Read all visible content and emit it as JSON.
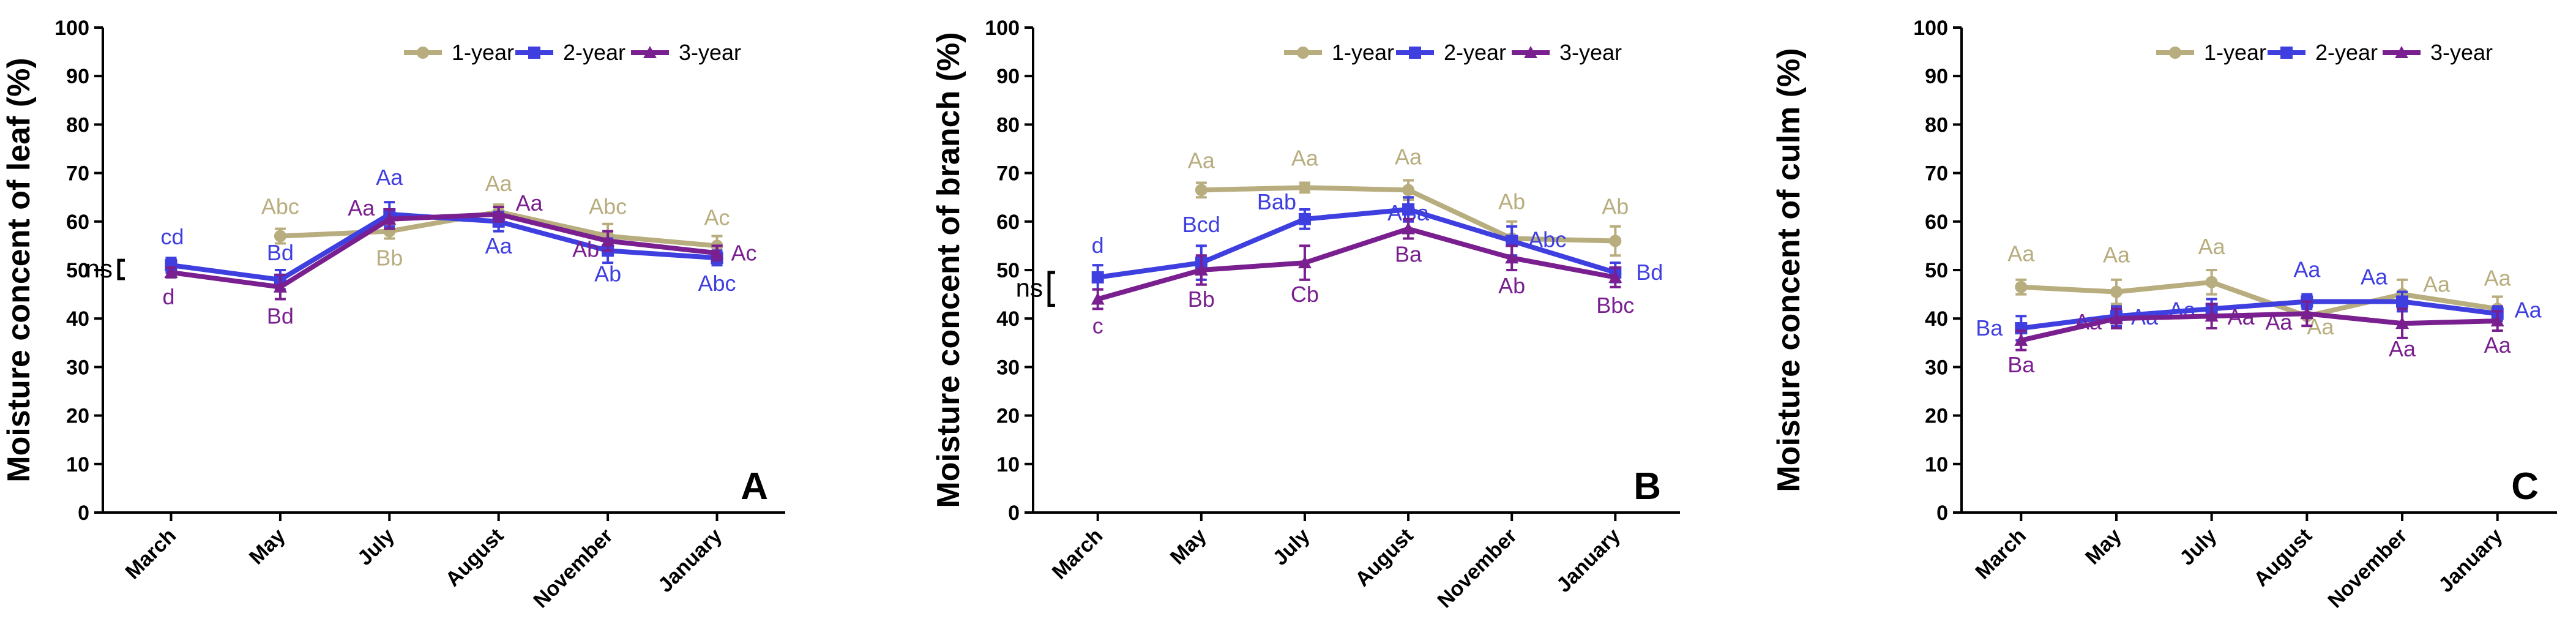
{
  "chart_data": [
    {
      "type": "line",
      "panel": "A",
      "ylabel": "Moisture concent of leaf (%)",
      "categories": [
        "March",
        "May",
        "July",
        "August",
        "November",
        "January"
      ],
      "ylim": [
        0,
        100
      ],
      "yticks": [
        "0",
        "10",
        "20",
        "30",
        "40",
        "50",
        "60",
        "70",
        "80",
        "90",
        "100"
      ],
      "series": [
        {
          "name": "1-year",
          "color": "#b8ad7e",
          "values": [
            null,
            57,
            58,
            62,
            57,
            55
          ],
          "errors": [
            0,
            1.5,
            1.5,
            1.5,
            2.5,
            2
          ],
          "labels": [
            null,
            "Abc",
            "Bb",
            "Aa",
            "Abc",
            "Ac"
          ]
        },
        {
          "name": "2-year",
          "color": "#3f3fe0",
          "values": [
            51,
            48,
            61.5,
            60,
            54,
            52.5
          ],
          "errors": [
            1.5,
            2,
            2.5,
            2,
            2.5,
            1.5
          ],
          "labels": [
            "cd",
            "Bd",
            "Aa",
            "Aa",
            "Ab",
            "Abc"
          ]
        },
        {
          "name": "3-year",
          "color": "#7a1f8f",
          "values": [
            49.5,
            46.5,
            60.5,
            61.5,
            56,
            53.5
          ],
          "errors": [
            1,
            2.5,
            2,
            1.5,
            2,
            1.5
          ],
          "labels": [
            "d",
            "Bd",
            "Aa",
            "Aa",
            "Ab",
            "Ac"
          ]
        }
      ],
      "annotations": [
        "ns"
      ],
      "legend": [
        "1-year",
        "2-year",
        "3-year"
      ]
    },
    {
      "type": "line",
      "panel": "B",
      "ylabel": "Moisture concent of branch (%)",
      "categories": [
        "March",
        "May",
        "July",
        "August",
        "November",
        "January"
      ],
      "ylim": [
        0,
        100
      ],
      "yticks": [
        "0",
        "10",
        "20",
        "30",
        "40",
        "50",
        "60",
        "70",
        "80",
        "90",
        "100"
      ],
      "series": [
        {
          "name": "1-year",
          "color": "#b8ad7e",
          "values": [
            null,
            66.5,
            67,
            66.5,
            56.5,
            56
          ],
          "errors": [
            0,
            1.5,
            1,
            2,
            3.5,
            3
          ],
          "labels": [
            null,
            "Aa",
            "Aa",
            "Aa",
            "Ab",
            "Ab"
          ]
        },
        {
          "name": "2-year",
          "color": "#3f3fe0",
          "values": [
            48.5,
            51.5,
            60.5,
            62.5,
            56,
            49.5
          ],
          "errors": [
            2.5,
            3.5,
            2,
            2.5,
            3,
            2
          ],
          "labels": [
            "d",
            "Bcd",
            "Bab",
            "ABa",
            "Abc",
            "Bd"
          ]
        },
        {
          "name": "3-year",
          "color": "#7a1f8f",
          "values": [
            44,
            50,
            51.5,
            58.5,
            52.5,
            48.5
          ],
          "errors": [
            2,
            3,
            3.5,
            2,
            2.5,
            2
          ],
          "labels": [
            "c",
            "Bb",
            "Cb",
            "Ba",
            "Ab",
            "Bbc"
          ]
        }
      ],
      "annotations": [
        "ns"
      ],
      "legend": [
        "1-year",
        "2-year",
        "3-year"
      ]
    },
    {
      "type": "line",
      "panel": "C",
      "ylabel": "Moisture concent of culm (%)",
      "categories": [
        "March",
        "May",
        "July",
        "August",
        "November",
        "January"
      ],
      "ylim": [
        0,
        100
      ],
      "yticks": [
        "0",
        "10",
        "20",
        "30",
        "40",
        "50",
        "60",
        "70",
        "80",
        "90",
        "100"
      ],
      "series": [
        {
          "name": "1-year",
          "color": "#b8ad7e",
          "values": [
            46.5,
            45.5,
            47.5,
            40.5,
            45,
            42
          ],
          "errors": [
            1.5,
            2.5,
            2.5,
            2,
            3,
            2.5
          ],
          "labels": [
            "Aa",
            "Aa",
            "Aa",
            "Aa",
            "Aa",
            "Aa"
          ]
        },
        {
          "name": "2-year",
          "color": "#3f3fe0",
          "values": [
            38,
            40.5,
            42,
            43.5,
            43.5,
            41
          ],
          "errors": [
            2.5,
            2,
            2,
            1.5,
            2,
            1.5
          ],
          "labels": [
            "Ba",
            "Aa",
            "Aa",
            "Aa",
            "Aa",
            "Aa"
          ]
        },
        {
          "name": "3-year",
          "color": "#7a1f8f",
          "values": [
            35.5,
            40,
            40.5,
            41,
            39,
            39.5
          ],
          "errors": [
            2,
            2,
            2.5,
            2.5,
            3,
            2
          ],
          "labels": [
            "Ba",
            "Aa",
            "Aa",
            "Aa",
            "Aa",
            "Aa"
          ]
        }
      ],
      "annotations": [],
      "legend": [
        "1-year",
        "2-year",
        "3-year"
      ]
    }
  ]
}
